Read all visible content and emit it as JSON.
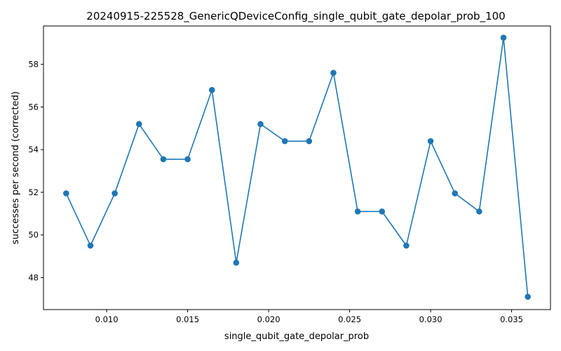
{
  "chart_data": {
    "type": "line",
    "title": "20240915-225528_GenericQDeviceConfig_single_qubit_gate_depolar_prob_100",
    "xlabel": "single_qubit_gate_depolar_prob",
    "ylabel": "successes per second (corrected)",
    "xlim": [
      0.0061,
      0.0374
    ],
    "ylim": [
      46.5,
      59.8
    ],
    "grid": false,
    "x_ticks": [
      0.01,
      0.015,
      0.02,
      0.025,
      0.03,
      0.035
    ],
    "x_tick_labels": [
      "0.010",
      "0.015",
      "0.020",
      "0.025",
      "0.030",
      "0.035"
    ],
    "y_ticks": [
      48,
      50,
      52,
      54,
      56,
      58
    ],
    "y_tick_labels": [
      "48",
      "50",
      "52",
      "54",
      "56",
      "58"
    ],
    "series": [
      {
        "color": "#1f77b4",
        "marker": "circle",
        "x": [
          0.0075,
          0.009,
          0.0105,
          0.012,
          0.0135,
          0.015,
          0.0165,
          0.018,
          0.0195,
          0.021,
          0.0225,
          0.024,
          0.0255,
          0.027,
          0.0285,
          0.03,
          0.0315,
          0.033,
          0.0345,
          0.036
        ],
        "y": [
          51.95,
          49.5,
          51.95,
          55.2,
          53.55,
          53.55,
          56.8,
          48.7,
          55.2,
          54.4,
          54.4,
          57.6,
          51.1,
          51.1,
          49.5,
          54.4,
          51.95,
          51.1,
          59.25,
          47.1
        ]
      }
    ]
  }
}
